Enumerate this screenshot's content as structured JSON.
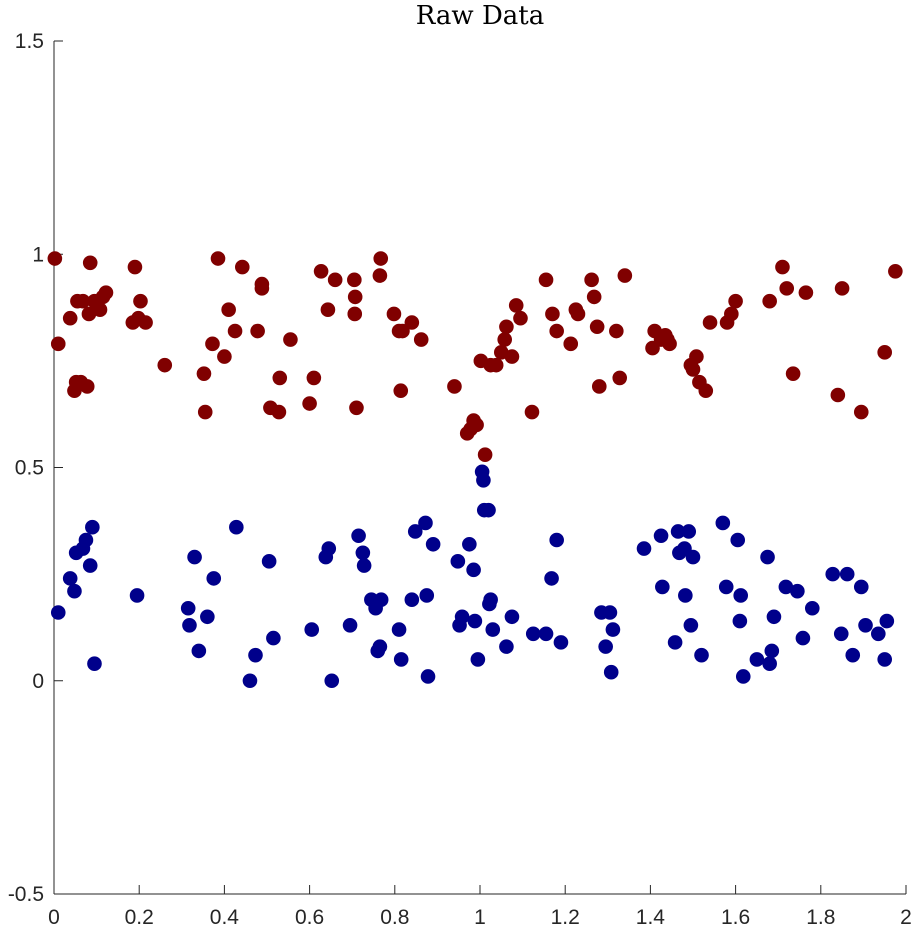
{
  "chart_data": {
    "type": "scatter",
    "title": "Raw Data",
    "xlabel": "",
    "ylabel": "",
    "xlim": [
      0,
      2
    ],
    "ylim": [
      -0.5,
      1.5
    ],
    "x_ticks": [
      0,
      0.2,
      0.4,
      0.6,
      0.8,
      1,
      1.2,
      1.4,
      1.6,
      1.8,
      2
    ],
    "x_tick_labels": [
      "0",
      "0.2",
      "0.4",
      "0.6",
      "0.8",
      "1",
      "1.2",
      "1.4",
      "1.6",
      "1.8",
      "2"
    ],
    "y_ticks": [
      -0.5,
      0,
      0.5,
      1,
      1.5
    ],
    "y_tick_labels": [
      "-0.5",
      "0",
      "0.5",
      "1",
      "1.5"
    ],
    "grid": false,
    "legend": "none",
    "series": [
      {
        "color": "#800000",
        "points": [
          [
            0.002,
            0.99
          ],
          [
            0.01,
            0.79
          ],
          [
            0.038,
            0.85
          ],
          [
            0.048,
            0.68
          ],
          [
            0.052,
            0.7
          ],
          [
            0.055,
            0.89
          ],
          [
            0.063,
            0.7
          ],
          [
            0.068,
            0.89
          ],
          [
            0.078,
            0.69
          ],
          [
            0.082,
            0.86
          ],
          [
            0.085,
            0.98
          ],
          [
            0.095,
            0.89
          ],
          [
            0.108,
            0.87
          ],
          [
            0.115,
            0.9
          ],
          [
            0.122,
            0.91
          ],
          [
            0.185,
            0.84
          ],
          [
            0.19,
            0.97
          ],
          [
            0.198,
            0.85
          ],
          [
            0.203,
            0.89
          ],
          [
            0.215,
            0.84
          ],
          [
            0.26,
            0.74
          ],
          [
            0.352,
            0.72
          ],
          [
            0.355,
            0.63
          ],
          [
            0.372,
            0.79
          ],
          [
            0.385,
            0.99
          ],
          [
            0.4,
            0.76
          ],
          [
            0.41,
            0.87
          ],
          [
            0.425,
            0.82
          ],
          [
            0.442,
            0.97
          ],
          [
            0.478,
            0.82
          ],
          [
            0.488,
            0.92
          ],
          [
            0.488,
            0.93
          ],
          [
            0.508,
            0.64
          ],
          [
            0.528,
            0.63
          ],
          [
            0.53,
            0.71
          ],
          [
            0.555,
            0.8
          ],
          [
            0.6,
            0.65
          ],
          [
            0.61,
            0.71
          ],
          [
            0.627,
            0.96
          ],
          [
            0.643,
            0.87
          ],
          [
            0.66,
            0.94
          ],
          [
            0.705,
            0.94
          ],
          [
            0.706,
            0.86
          ],
          [
            0.707,
            0.9
          ],
          [
            0.71,
            0.64
          ],
          [
            0.765,
            0.95
          ],
          [
            0.767,
            0.99
          ],
          [
            0.798,
            0.86
          ],
          [
            0.81,
            0.82
          ],
          [
            0.814,
            0.68
          ],
          [
            0.818,
            0.82
          ],
          [
            0.84,
            0.84
          ],
          [
            0.862,
            0.8
          ],
          [
            0.94,
            0.69
          ],
          [
            0.97,
            0.58
          ],
          [
            0.978,
            0.59
          ],
          [
            0.985,
            0.61
          ],
          [
            0.992,
            0.6
          ],
          [
            1.002,
            0.75
          ],
          [
            1.012,
            0.53
          ],
          [
            1.025,
            0.74
          ],
          [
            1.038,
            0.74
          ],
          [
            1.05,
            0.77
          ],
          [
            1.058,
            0.8
          ],
          [
            1.062,
            0.83
          ],
          [
            1.075,
            0.76
          ],
          [
            1.085,
            0.88
          ],
          [
            1.095,
            0.85
          ],
          [
            1.122,
            0.63
          ],
          [
            1.155,
            0.94
          ],
          [
            1.17,
            0.86
          ],
          [
            1.18,
            0.82
          ],
          [
            1.213,
            0.79
          ],
          [
            1.225,
            0.87
          ],
          [
            1.23,
            0.86
          ],
          [
            1.262,
            0.94
          ],
          [
            1.268,
            0.9
          ],
          [
            1.275,
            0.83
          ],
          [
            1.28,
            0.69
          ],
          [
            1.32,
            0.82
          ],
          [
            1.328,
            0.71
          ],
          [
            1.34,
            0.95
          ],
          [
            1.405,
            0.78
          ],
          [
            1.41,
            0.82
          ],
          [
            1.425,
            0.8
          ],
          [
            1.435,
            0.81
          ],
          [
            1.44,
            0.8
          ],
          [
            1.445,
            0.79
          ],
          [
            1.495,
            0.74
          ],
          [
            1.5,
            0.73
          ],
          [
            1.508,
            0.76
          ],
          [
            1.515,
            0.7
          ],
          [
            1.53,
            0.68
          ],
          [
            1.54,
            0.84
          ],
          [
            1.58,
            0.84
          ],
          [
            1.59,
            0.86
          ],
          [
            1.6,
            0.89
          ],
          [
            1.68,
            0.89
          ],
          [
            1.71,
            0.97
          ],
          [
            1.72,
            0.92
          ],
          [
            1.735,
            0.72
          ],
          [
            1.765,
            0.91
          ],
          [
            1.84,
            0.67
          ],
          [
            1.85,
            0.92
          ],
          [
            1.895,
            0.63
          ],
          [
            1.95,
            0.77
          ],
          [
            1.975,
            0.96
          ]
        ]
      },
      {
        "color": "#00008b",
        "points": [
          [
            0.01,
            0.16
          ],
          [
            0.038,
            0.24
          ],
          [
            0.048,
            0.21
          ],
          [
            0.052,
            0.3
          ],
          [
            0.068,
            0.31
          ],
          [
            0.075,
            0.33
          ],
          [
            0.085,
            0.27
          ],
          [
            0.09,
            0.36
          ],
          [
            0.095,
            0.04
          ],
          [
            0.195,
            0.2
          ],
          [
            0.315,
            0.17
          ],
          [
            0.318,
            0.13
          ],
          [
            0.33,
            0.29
          ],
          [
            0.34,
            0.07
          ],
          [
            0.36,
            0.15
          ],
          [
            0.375,
            0.24
          ],
          [
            0.428,
            0.36
          ],
          [
            0.46,
            0.0
          ],
          [
            0.473,
            0.06
          ],
          [
            0.505,
            0.28
          ],
          [
            0.515,
            0.1
          ],
          [
            0.605,
            0.12
          ],
          [
            0.638,
            0.29
          ],
          [
            0.645,
            0.31
          ],
          [
            0.652,
            0.0
          ],
          [
            0.695,
            0.13
          ],
          [
            0.715,
            0.34
          ],
          [
            0.725,
            0.3
          ],
          [
            0.728,
            0.27
          ],
          [
            0.745,
            0.19
          ],
          [
            0.755,
            0.17
          ],
          [
            0.76,
            0.07
          ],
          [
            0.765,
            0.08
          ],
          [
            0.768,
            0.19
          ],
          [
            0.81,
            0.12
          ],
          [
            0.815,
            0.05
          ],
          [
            0.84,
            0.19
          ],
          [
            0.848,
            0.35
          ],
          [
            0.872,
            0.37
          ],
          [
            0.875,
            0.2
          ],
          [
            0.878,
            0.01
          ],
          [
            0.89,
            0.32
          ],
          [
            0.948,
            0.28
          ],
          [
            0.952,
            0.13
          ],
          [
            0.958,
            0.15
          ],
          [
            0.975,
            0.32
          ],
          [
            0.985,
            0.26
          ],
          [
            0.988,
            0.14
          ],
          [
            0.995,
            0.05
          ],
          [
            1.005,
            0.49
          ],
          [
            1.008,
            0.47
          ],
          [
            1.01,
            0.4
          ],
          [
            1.02,
            0.4
          ],
          [
            1.022,
            0.18
          ],
          [
            1.025,
            0.19
          ],
          [
            1.03,
            0.12
          ],
          [
            1.062,
            0.08
          ],
          [
            1.075,
            0.15
          ],
          [
            1.125,
            0.11
          ],
          [
            1.155,
            0.11
          ],
          [
            1.168,
            0.24
          ],
          [
            1.18,
            0.33
          ],
          [
            1.19,
            0.09
          ],
          [
            1.285,
            0.16
          ],
          [
            1.295,
            0.08
          ],
          [
            1.305,
            0.16
          ],
          [
            1.308,
            0.02
          ],
          [
            1.312,
            0.12
          ],
          [
            1.385,
            0.31
          ],
          [
            1.425,
            0.34
          ],
          [
            1.428,
            0.22
          ],
          [
            1.458,
            0.09
          ],
          [
            1.465,
            0.35
          ],
          [
            1.468,
            0.3
          ],
          [
            1.48,
            0.31
          ],
          [
            1.482,
            0.2
          ],
          [
            1.49,
            0.35
          ],
          [
            1.495,
            0.13
          ],
          [
            1.5,
            0.29
          ],
          [
            1.52,
            0.06
          ],
          [
            1.57,
            0.37
          ],
          [
            1.578,
            0.22
          ],
          [
            1.605,
            0.33
          ],
          [
            1.61,
            0.14
          ],
          [
            1.612,
            0.2
          ],
          [
            1.618,
            0.01
          ],
          [
            1.65,
            0.05
          ],
          [
            1.675,
            0.29
          ],
          [
            1.68,
            0.04
          ],
          [
            1.685,
            0.07
          ],
          [
            1.69,
            0.15
          ],
          [
            1.718,
            0.22
          ],
          [
            1.745,
            0.21
          ],
          [
            1.758,
            0.1
          ],
          [
            1.78,
            0.17
          ],
          [
            1.828,
            0.25
          ],
          [
            1.848,
            0.11
          ],
          [
            1.862,
            0.25
          ],
          [
            1.875,
            0.06
          ],
          [
            1.895,
            0.22
          ],
          [
            1.905,
            0.13
          ],
          [
            1.935,
            0.11
          ],
          [
            1.95,
            0.05
          ],
          [
            1.955,
            0.14
          ]
        ]
      }
    ]
  }
}
